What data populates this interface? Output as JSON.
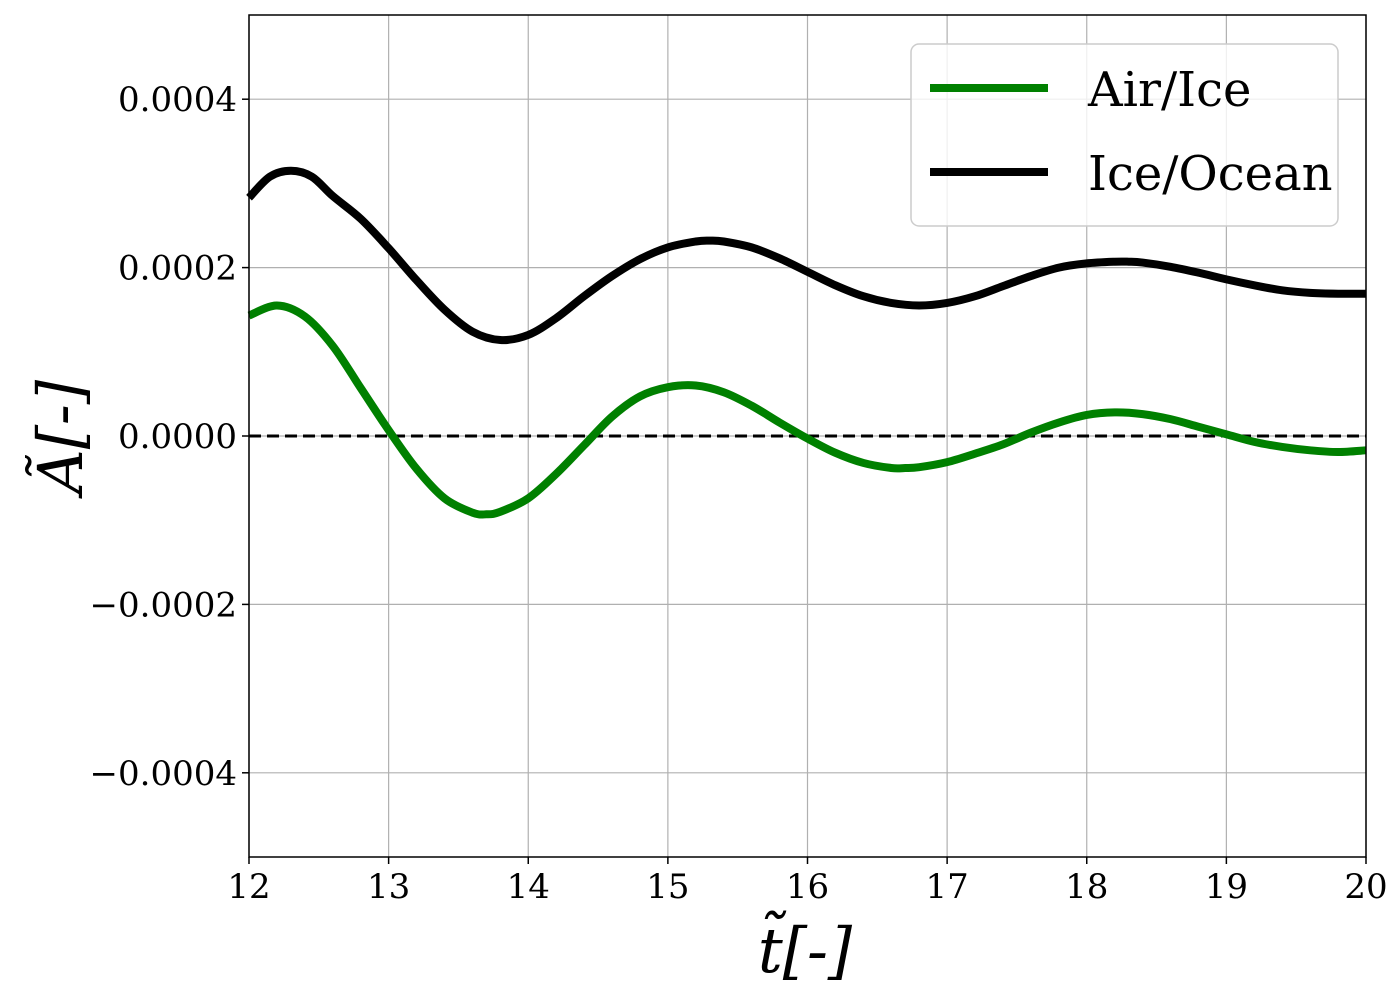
{
  "chart_data": {
    "type": "line",
    "xlabel": "t̃[-]",
    "ylabel": "Ã[-]",
    "xlim": [
      12,
      20
    ],
    "ylim": [
      -0.0005,
      0.0005
    ],
    "xticks": [
      12,
      13,
      14,
      15,
      16,
      17,
      18,
      19,
      20
    ],
    "xtick_labels": [
      "12",
      "13",
      "14",
      "15",
      "16",
      "17",
      "18",
      "19",
      "20"
    ],
    "yticks": [
      0.0004,
      0.0002,
      0.0,
      -0.0002,
      -0.0004
    ],
    "ytick_labels": [
      "0.0004",
      "0.0002",
      "0.0000",
      "−0.0002",
      "−0.0004"
    ],
    "grid": true,
    "legend_position": "top-right",
    "reference_line": {
      "y": 0.0,
      "style": "dashed",
      "color": "#000000"
    },
    "series": [
      {
        "name": "Air/Ice",
        "color": "#008000",
        "x": [
          12.0,
          12.2,
          12.4,
          12.6,
          12.8,
          13.0,
          13.2,
          13.4,
          13.6,
          13.7,
          13.8,
          14.0,
          14.2,
          14.4,
          14.6,
          14.8,
          15.0,
          15.2,
          15.4,
          15.6,
          15.8,
          16.0,
          16.2,
          16.4,
          16.6,
          16.7,
          16.8,
          17.0,
          17.2,
          17.4,
          17.6,
          17.8,
          18.0,
          18.2,
          18.4,
          18.6,
          18.8,
          19.0,
          19.2,
          19.4,
          19.6,
          19.8,
          20.0
        ],
        "y": [
          0.000143,
          0.000155,
          0.000142,
          0.000107,
          5.7e-05,
          7e-06,
          -3.9e-05,
          -7.4e-05,
          -9.1e-05,
          -9.3e-05,
          -9e-05,
          -7.4e-05,
          -4.5e-05,
          -1.1e-05,
          2.3e-05,
          4.7e-05,
          5.8e-05,
          6e-05,
          5.2e-05,
          3.6e-05,
          1.6e-05,
          -3e-06,
          -2e-05,
          -3.2e-05,
          -3.8e-05,
          -3.8e-05,
          -3.7e-05,
          -3.1e-05,
          -2.1e-05,
          -1e-05,
          4e-06,
          1.6e-05,
          2.5e-05,
          2.8e-05,
          2.6e-05,
          2e-05,
          1.1e-05,
          2e-06,
          -7e-06,
          -1.3e-05,
          -1.7e-05,
          -1.9e-05,
          -1.7e-05
        ]
      },
      {
        "name": "Ice/Ocean",
        "color": "#000000",
        "x": [
          12.0,
          12.15,
          12.3,
          12.45,
          12.6,
          12.8,
          13.0,
          13.2,
          13.4,
          13.6,
          13.8,
          14.0,
          14.2,
          14.4,
          14.6,
          14.8,
          15.0,
          15.2,
          15.3,
          15.4,
          15.6,
          15.8,
          16.0,
          16.2,
          16.4,
          16.6,
          16.8,
          17.0,
          17.2,
          17.4,
          17.6,
          17.8,
          18.0,
          18.2,
          18.3,
          18.4,
          18.6,
          18.8,
          19.0,
          19.2,
          19.4,
          19.6,
          19.8,
          20.0
        ],
        "y": [
          0.000283,
          0.000308,
          0.000315,
          0.000308,
          0.000285,
          0.000258,
          0.000223,
          0.000185,
          0.00015,
          0.000124,
          0.000114,
          0.00012,
          0.00014,
          0.000166,
          0.00019,
          0.00021,
          0.000224,
          0.000231,
          0.000232,
          0.000231,
          0.000224,
          0.000211,
          0.000195,
          0.000179,
          0.000166,
          0.000158,
          0.000155,
          0.000158,
          0.000166,
          0.000178,
          0.00019,
          0.0002,
          0.000205,
          0.000207,
          0.000207,
          0.000206,
          0.000201,
          0.000194,
          0.000186,
          0.000179,
          0.000173,
          0.00017,
          0.000169,
          0.000169
        ]
      }
    ]
  }
}
